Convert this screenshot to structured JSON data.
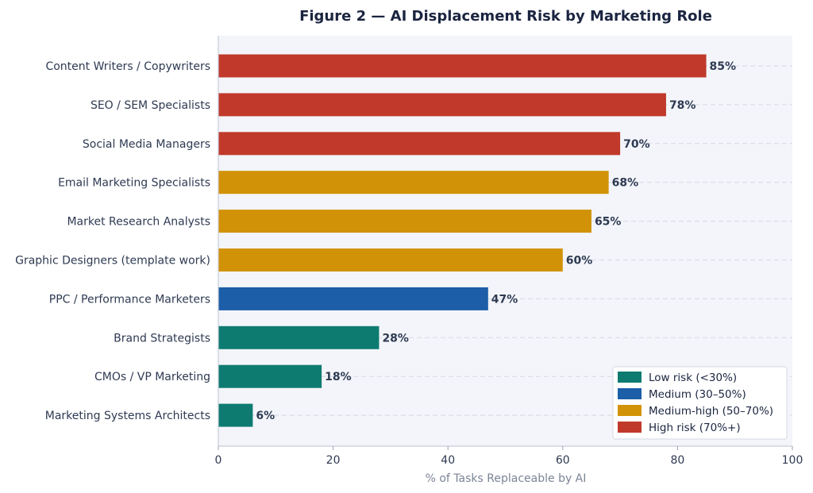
{
  "chart_data": {
    "type": "bar",
    "orientation": "horizontal",
    "title": "Figure 2 — AI Displacement Risk by Marketing Role",
    "xlabel": "% of Tasks Replaceable by AI",
    "ylabel": "",
    "xlim": [
      0,
      100
    ],
    "xticks": [
      "0",
      "20",
      "40",
      "60",
      "80",
      "100"
    ],
    "grid": "horizontal dashed",
    "categories": [
      "Content Writers / Copywriters",
      "SEO / SEM Specialists",
      "Social Media Managers",
      "Email Marketing Specialists",
      "Market Research Analysts",
      "Graphic Designers (template work)",
      "PPC / Performance Marketers",
      "Brand Strategists",
      "CMOs / VP Marketing",
      "Marketing Systems Architects"
    ],
    "values": [
      85,
      78,
      70,
      68,
      65,
      60,
      47,
      28,
      18,
      6
    ],
    "value_labels": [
      "85%",
      "78%",
      "70%",
      "68%",
      "65%",
      "60%",
      "47%",
      "28%",
      "18%",
      "6%"
    ],
    "risk_levels": [
      "high",
      "high",
      "high",
      "medium-high",
      "medium-high",
      "medium-high",
      "medium",
      "low",
      "low",
      "low"
    ],
    "legend_position": "bottom-right",
    "legend": [
      {
        "key": "low",
        "label": "Low risk (<30%)",
        "color": "#0e7b71"
      },
      {
        "key": "medium",
        "label": "Medium (30–50%)",
        "color": "#1c5ea7"
      },
      {
        "key": "medium-high",
        "label": "Medium-high (50–70%)",
        "color": "#d29207"
      },
      {
        "key": "high",
        "label": "High risk (70%+)",
        "color": "#c0392b"
      }
    ]
  }
}
